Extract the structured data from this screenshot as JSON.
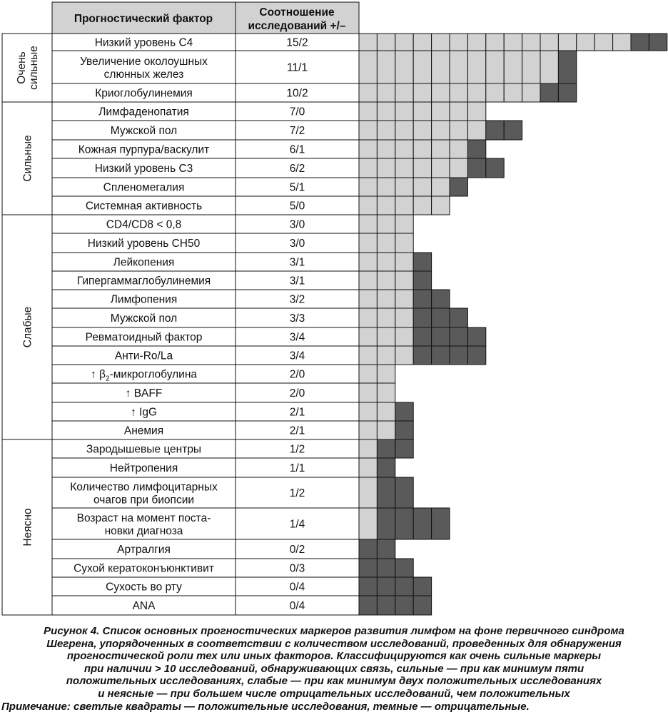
{
  "table": {
    "header_factor": "Прогностический фактор",
    "header_ratio_line1": "Соотношение",
    "header_ratio_line2": "исследований +/–"
  },
  "groups": [
    {
      "label_lines": [
        "Очень",
        "сильные"
      ],
      "rows": [
        0,
        2
      ]
    },
    {
      "label_lines": [
        "Сильные"
      ],
      "rows": [
        3,
        8
      ]
    },
    {
      "label_lines": [
        "Слабые"
      ],
      "rows": [
        9,
        20
      ]
    },
    {
      "label_lines": [
        "Неясно"
      ],
      "rows": [
        21,
        28
      ]
    }
  ],
  "chart_data": {
    "type": "table",
    "legend": {
      "positive_color": "#d2d2d2",
      "negative_color": "#5a5a5a"
    },
    "rows": [
      {
        "factor": "Низкий уровень C4",
        "ratio": "15/2",
        "positive": 15,
        "negative": 2
      },
      {
        "factor_lines": [
          "Увеличение околоушных",
          "слюнных желез"
        ],
        "ratio": "11/1",
        "positive": 11,
        "negative": 1
      },
      {
        "factor": "Криоглобулинемия",
        "ratio": "10/2",
        "positive": 10,
        "negative": 2
      },
      {
        "factor": "Лимфаденопатия",
        "ratio": "7/0",
        "positive": 7,
        "negative": 0
      },
      {
        "factor": "Мужской пол",
        "ratio": "7/2",
        "positive": 7,
        "negative": 2
      },
      {
        "factor": "Кожная пурпура/васкулит",
        "ratio": "6/1",
        "positive": 6,
        "negative": 1
      },
      {
        "factor": "Низкий уровень C3",
        "ratio": "6/2",
        "positive": 6,
        "negative": 2
      },
      {
        "factor": "Спленомегалия",
        "ratio": "5/1",
        "positive": 5,
        "negative": 1
      },
      {
        "factor": "Системная активность",
        "ratio": "5/0",
        "positive": 5,
        "negative": 0
      },
      {
        "factor": "CD4/CD8 < 0,8",
        "ratio": "3/0",
        "positive": 3,
        "negative": 0
      },
      {
        "factor": "Низкий уровень CH50",
        "ratio": "3/0",
        "positive": 3,
        "negative": 0
      },
      {
        "factor": "Лейкопения",
        "ratio": "3/1",
        "positive": 3,
        "negative": 1
      },
      {
        "factor": "Гипергаммаглобулинемия",
        "ratio": "3/1",
        "positive": 3,
        "negative": 1
      },
      {
        "factor": "Лимфопения",
        "ratio": "3/2",
        "positive": 3,
        "negative": 2
      },
      {
        "factor": "Мужской пол",
        "ratio": "3/3",
        "positive": 3,
        "negative": 3
      },
      {
        "factor": "Ревматоидный фактор",
        "ratio": "3/4",
        "positive": 3,
        "negative": 4
      },
      {
        "factor": "Анти-Ro/La",
        "ratio": "3/4",
        "positive": 3,
        "negative": 4
      },
      {
        "factor_parts": [
          "↑ β",
          "2",
          "-микроглобулина"
        ],
        "ratio": "2/0",
        "positive": 2,
        "negative": 0
      },
      {
        "factor": "↑ BAFF",
        "ratio": "2/0",
        "positive": 2,
        "negative": 0
      },
      {
        "factor": "↑ IgG",
        "ratio": "2/1",
        "positive": 2,
        "negative": 1
      },
      {
        "factor": "Анемия",
        "ratio": "2/1",
        "positive": 2,
        "negative": 1
      },
      {
        "factor": "Зародышевые центры",
        "ratio": "1/2",
        "positive": 1,
        "negative": 2
      },
      {
        "factor": "Нейтропения",
        "ratio": "1/1",
        "positive": 1,
        "negative": 1
      },
      {
        "factor_lines": [
          "Количество лимфоцитарных",
          "очагов при биопсии"
        ],
        "ratio": "1/2",
        "positive": 1,
        "negative": 2
      },
      {
        "factor_lines": [
          "Возраст на момент поста-",
          "новки диагноза"
        ],
        "ratio": "1/4",
        "positive": 1,
        "negative": 4
      },
      {
        "factor": "Артралгия",
        "ratio": "0/2",
        "positive": 0,
        "negative": 2
      },
      {
        "factor": "Сухой кератоконъюнктивит",
        "ratio": "0/3",
        "positive": 0,
        "negative": 3
      },
      {
        "factor": "Сухость во рту",
        "ratio": "0/4",
        "positive": 0,
        "negative": 4
      },
      {
        "factor": "ANA",
        "ratio": "0/4",
        "positive": 0,
        "negative": 4
      }
    ]
  },
  "caption": {
    "lines": [
      "Рисунок 4. Список основных прогностических маркеров развития лимфом на фоне первичного синдрома",
      "Шегрена, упорядоченных в соответствии с количеством исследований, проведенных для обнаружения",
      "прогностической роли тех или иных факторов. Классифицируются как очень сильные маркеры",
      "при наличии > 10 исследований, обнаруживающих связь, сильные — при как минимум пяти",
      "положительных исследованиях, слабые — при как минимум двух положительных исследованиях",
      "и неясные — при большем числе отрицательных исследований, чем положительных"
    ],
    "note": "Примечание: светлые квадраты — положительные исследования, темные — отрицательные."
  }
}
